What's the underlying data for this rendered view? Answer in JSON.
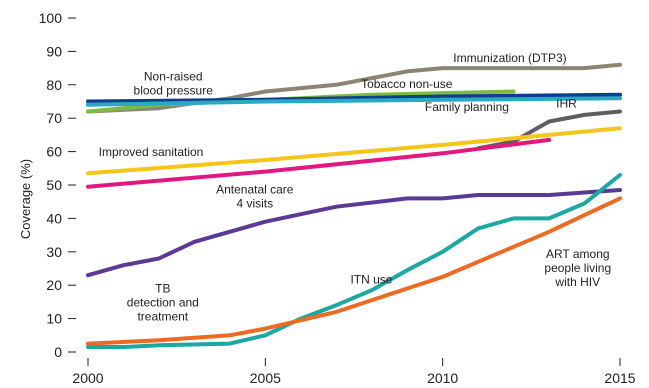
{
  "chart_data": {
    "type": "line",
    "title": "",
    "xlabel": "",
    "ylabel": "Coverage (%)",
    "xlim": [
      2000,
      2015
    ],
    "ylim": [
      0,
      100
    ],
    "grid": false,
    "x_ticks": [
      2000,
      2005,
      2010,
      2015
    ],
    "y_ticks": [
      0,
      10,
      20,
      30,
      40,
      50,
      60,
      70,
      80,
      90,
      100
    ],
    "series": [
      {
        "name": "Immunization (DTP3)",
        "color": "#8b8573",
        "points": [
          [
            2000,
            72
          ],
          [
            2002,
            73
          ],
          [
            2004,
            76
          ],
          [
            2005,
            78
          ],
          [
            2007,
            80
          ],
          [
            2009,
            84
          ],
          [
            2010,
            85
          ],
          [
            2012,
            85
          ],
          [
            2014,
            85
          ],
          [
            2015,
            86
          ]
        ],
        "label_lines": [
          "Immunization (DTP3)"
        ],
        "label_at": [
          2010.3,
          86.8
        ]
      },
      {
        "name": "Tobacco non-use",
        "color": "#7dbb42",
        "points": [
          [
            2000,
            72
          ],
          [
            2002,
            74
          ],
          [
            2004,
            75
          ],
          [
            2006,
            76
          ],
          [
            2008,
            77
          ],
          [
            2010,
            77.5
          ],
          [
            2012,
            78
          ]
        ],
        "label_lines": [
          "Tobacco non-use"
        ],
        "label_at": [
          2007.7,
          79
        ]
      },
      {
        "name": "Non-raised blood pressure",
        "color": "#0e3e8c",
        "points": [
          [
            2000,
            75
          ],
          [
            2005,
            75.5
          ],
          [
            2010,
            76.5
          ],
          [
            2015,
            77
          ]
        ],
        "label_lines": [
          "Non-raised",
          "blood pressure"
        ],
        "label_at": [
          2001.1,
          81.3
        ]
      },
      {
        "name": "Family planning",
        "color": "#2aa9c5",
        "points": [
          [
            2000,
            74
          ],
          [
            2005,
            75
          ],
          [
            2010,
            75.5
          ],
          [
            2015,
            76
          ]
        ],
        "label_lines": [
          "Family planning"
        ],
        "label_at": [
          2009.5,
          72.2
        ]
      },
      {
        "name": "IHR",
        "color": "#5e5e5e",
        "points": [
          [
            2011,
            61
          ],
          [
            2012,
            63
          ],
          [
            2013,
            69
          ],
          [
            2014,
            71
          ],
          [
            2015,
            72
          ]
        ],
        "label_lines": [
          "IHR"
        ],
        "label_at": [
          2013.2,
          73.2
        ]
      },
      {
        "name": "Improved sanitation",
        "color": "#f4c619",
        "points": [
          [
            2000,
            53.5
          ],
          [
            2005,
            57.5
          ],
          [
            2010,
            62
          ],
          [
            2015,
            67
          ]
        ],
        "label_lines": [
          "Improved sanitation"
        ],
        "label_at": [
          2000.3,
          58.7
        ]
      },
      {
        "name": "Antenatal care 4 visits",
        "color": "#e2187f",
        "points": [
          [
            2000,
            49.5
          ],
          [
            2005,
            54
          ],
          [
            2010,
            59.5
          ],
          [
            2013,
            63.5
          ]
        ],
        "label_lines": [
          "Antenatal care",
          "4 visits"
        ],
        "label_at": [
          2003.4,
          47.4
        ]
      },
      {
        "name": "TB detection and treatment",
        "color": "#5b3a97",
        "points": [
          [
            2000,
            23
          ],
          [
            2001,
            26
          ],
          [
            2002,
            28
          ],
          [
            2003,
            33
          ],
          [
            2005,
            39
          ],
          [
            2007,
            43.5
          ],
          [
            2009,
            46
          ],
          [
            2010,
            46
          ],
          [
            2011,
            47
          ],
          [
            2013,
            47
          ],
          [
            2015,
            48.5
          ]
        ],
        "label_lines": [
          "TB",
          "detection and",
          "treatment"
        ],
        "label_at": [
          2000.9,
          17.8
        ]
      },
      {
        "name": "ITN use",
        "color": "#1aa8a1",
        "points": [
          [
            2000,
            1.5
          ],
          [
            2001,
            1.5
          ],
          [
            2002,
            2
          ],
          [
            2004,
            2.5
          ],
          [
            2005,
            5
          ],
          [
            2006,
            10
          ],
          [
            2007,
            14
          ],
          [
            2008,
            18.5
          ],
          [
            2009,
            24.5
          ],
          [
            2010,
            30
          ],
          [
            2011,
            37
          ],
          [
            2012,
            40
          ],
          [
            2013,
            40
          ],
          [
            2014,
            44.5
          ],
          [
            2015,
            53
          ]
        ],
        "label_lines": [
          "ITN use"
        ],
        "label_at": [
          2007.4,
          20.5
        ]
      },
      {
        "name": "ART among people living with HIV",
        "color": "#ee6a23",
        "points": [
          [
            2000,
            2.5
          ],
          [
            2002,
            3.5
          ],
          [
            2004,
            5
          ],
          [
            2005,
            7
          ],
          [
            2007,
            12
          ],
          [
            2009,
            19
          ],
          [
            2010,
            22.5
          ],
          [
            2011,
            27
          ],
          [
            2012,
            31.5
          ],
          [
            2013,
            36
          ],
          [
            2014,
            41
          ],
          [
            2015,
            46
          ]
        ],
        "label_lines": [
          "ART among",
          "people living",
          "with HIV"
        ],
        "label_at": [
          2012.6,
          28.1
        ]
      }
    ]
  }
}
